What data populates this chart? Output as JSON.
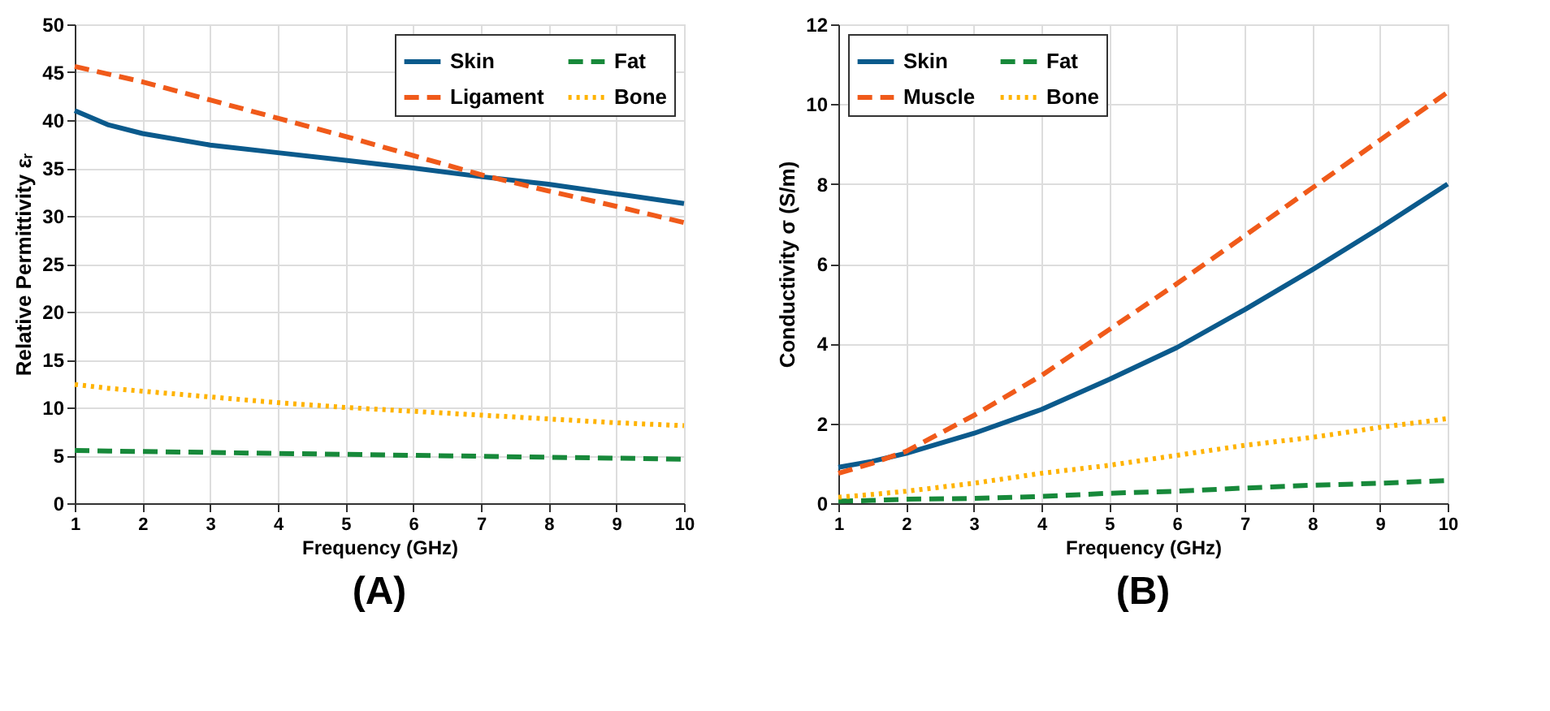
{
  "chart_data": [
    {
      "type": "line",
      "title": "(A)",
      "xlabel": "Frequency (GHz)",
      "ylabel": "Relative Permittivity εᵣ",
      "x": [
        1,
        1.5,
        2,
        3,
        4,
        5,
        6,
        7,
        8,
        9,
        10
      ],
      "xlim": [
        1,
        10
      ],
      "xticks": [
        1,
        2,
        3,
        4,
        5,
        6,
        7,
        8,
        9,
        10
      ],
      "ylim": [
        0,
        50
      ],
      "yticks": [
        0,
        5,
        10,
        15,
        20,
        25,
        30,
        35,
        40,
        45,
        50
      ],
      "grid": true,
      "legend": "top right",
      "series": [
        {
          "name": "Skin",
          "color": "#0b5a8c",
          "line_style": "solid",
          "values": [
            41,
            39.5,
            38.6,
            37.4,
            36.6,
            35.8,
            35,
            34.1,
            33.3,
            32.3,
            31.3
          ]
        },
        {
          "name": "Ligament",
          "color": "#f05a1a",
          "line_style": "dashed",
          "values": [
            45.6,
            44.8,
            44,
            42.1,
            40.2,
            38.3,
            36.3,
            34.3,
            32.6,
            31,
            29.3
          ]
        },
        {
          "name": "Fat",
          "color": "#17893a",
          "line_style": "dashed",
          "values": [
            5.5,
            5.45,
            5.4,
            5.3,
            5.2,
            5.1,
            5.0,
            4.9,
            4.8,
            4.7,
            4.6
          ]
        },
        {
          "name": "Bone",
          "color": "#ffb300",
          "line_style": "dotted",
          "values": [
            12.4,
            12.0,
            11.7,
            11.1,
            10.5,
            10.0,
            9.6,
            9.2,
            8.8,
            8.4,
            8.1
          ]
        }
      ]
    },
    {
      "type": "line",
      "title": "(B)",
      "xlabel": "Frequency (GHz)",
      "ylabel": "Conductivity σ (S/m)",
      "x": [
        1,
        1.5,
        2,
        3,
        4,
        5,
        6,
        7,
        8,
        9,
        10
      ],
      "xlim": [
        1,
        10
      ],
      "xticks": [
        1,
        2,
        3,
        4,
        5,
        6,
        7,
        8,
        9,
        10
      ],
      "ylim": [
        0,
        12
      ],
      "yticks": [
        0,
        2,
        4,
        6,
        8,
        10,
        12
      ],
      "grid": true,
      "legend": "top left",
      "series": [
        {
          "name": "Skin",
          "color": "#0b5a8c",
          "line_style": "solid",
          "values": [
            0.9,
            1.05,
            1.25,
            1.75,
            2.35,
            3.1,
            3.9,
            4.85,
            5.85,
            6.9,
            8.0
          ]
        },
        {
          "name": "Muscle",
          "color": "#f05a1a",
          "line_style": "dashed",
          "values": [
            0.75,
            1.0,
            1.3,
            2.2,
            3.2,
            4.35,
            5.5,
            6.7,
            7.9,
            9.1,
            10.3
          ]
        },
        {
          "name": "Fat",
          "color": "#17893a",
          "line_style": "dashed",
          "values": [
            0.05,
            0.07,
            0.1,
            0.12,
            0.17,
            0.25,
            0.3,
            0.38,
            0.45,
            0.5,
            0.57
          ]
        },
        {
          "name": "Bone",
          "color": "#ffb300",
          "line_style": "dotted",
          "values": [
            0.15,
            0.22,
            0.3,
            0.5,
            0.75,
            0.95,
            1.2,
            1.45,
            1.65,
            1.9,
            2.12
          ]
        }
      ]
    }
  ]
}
